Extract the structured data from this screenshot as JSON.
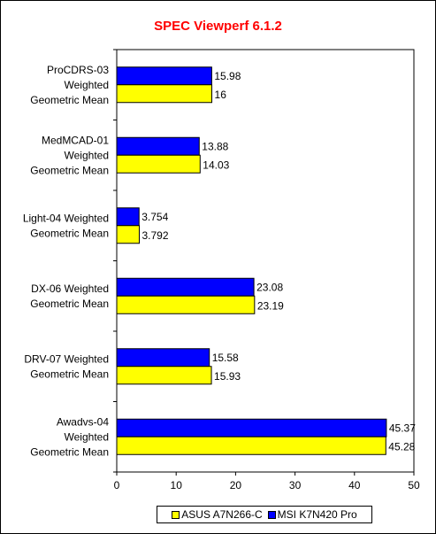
{
  "chart_data": {
    "type": "bar",
    "orientation": "horizontal",
    "title": "SPEC Viewperf 6.1.2",
    "categories": [
      "ProCDRS-03 Weighted Geometric Mean",
      "MedMCAD-01 Weighted Geometric Mean",
      "Light-04 Weighted Geometric Mean",
      "DX-06 Weighted Geometric Mean",
      "DRV-07 Weighted Geometric Mean",
      "Awadvs-04 Weighted Geometric Mean"
    ],
    "category_lines": [
      [
        "ProCDRS-03",
        "Weighted",
        "Geometric Mean"
      ],
      [
        "MedMCAD-01",
        "Weighted",
        "Geometric Mean"
      ],
      [
        "Light-04 Weighted",
        "Geometric Mean"
      ],
      [
        "DX-06 Weighted",
        "Geometric Mean"
      ],
      [
        "DRV-07 Weighted",
        "Geometric Mean"
      ],
      [
        "Awadvs-04",
        "Weighted",
        "Geometric Mean"
      ]
    ],
    "series": [
      {
        "name": "MSI K7N420 Pro",
        "color": "#0000ff",
        "values": [
          15.98,
          13.88,
          3.754,
          23.08,
          15.58,
          45.37
        ],
        "labels": [
          "15.98",
          "13.88",
          "3.754",
          "23.08",
          "15.58",
          "45.37"
        ]
      },
      {
        "name": "ASUS A7N266-C",
        "color": "#ffff00",
        "values": [
          16,
          14.03,
          3.792,
          23.19,
          15.93,
          45.28
        ],
        "labels": [
          "16",
          "14.03",
          "3.792",
          "23.19",
          "15.93",
          "45.28"
        ]
      }
    ],
    "xlim": [
      0,
      50
    ],
    "xticks": [
      "0",
      "10",
      "20",
      "30",
      "40",
      "50"
    ],
    "grid": false,
    "legend_position": "bottom",
    "legend_order": [
      "ASUS A7N266-C",
      "MSI K7N420 Pro"
    ],
    "title_color": "#ff0000"
  }
}
